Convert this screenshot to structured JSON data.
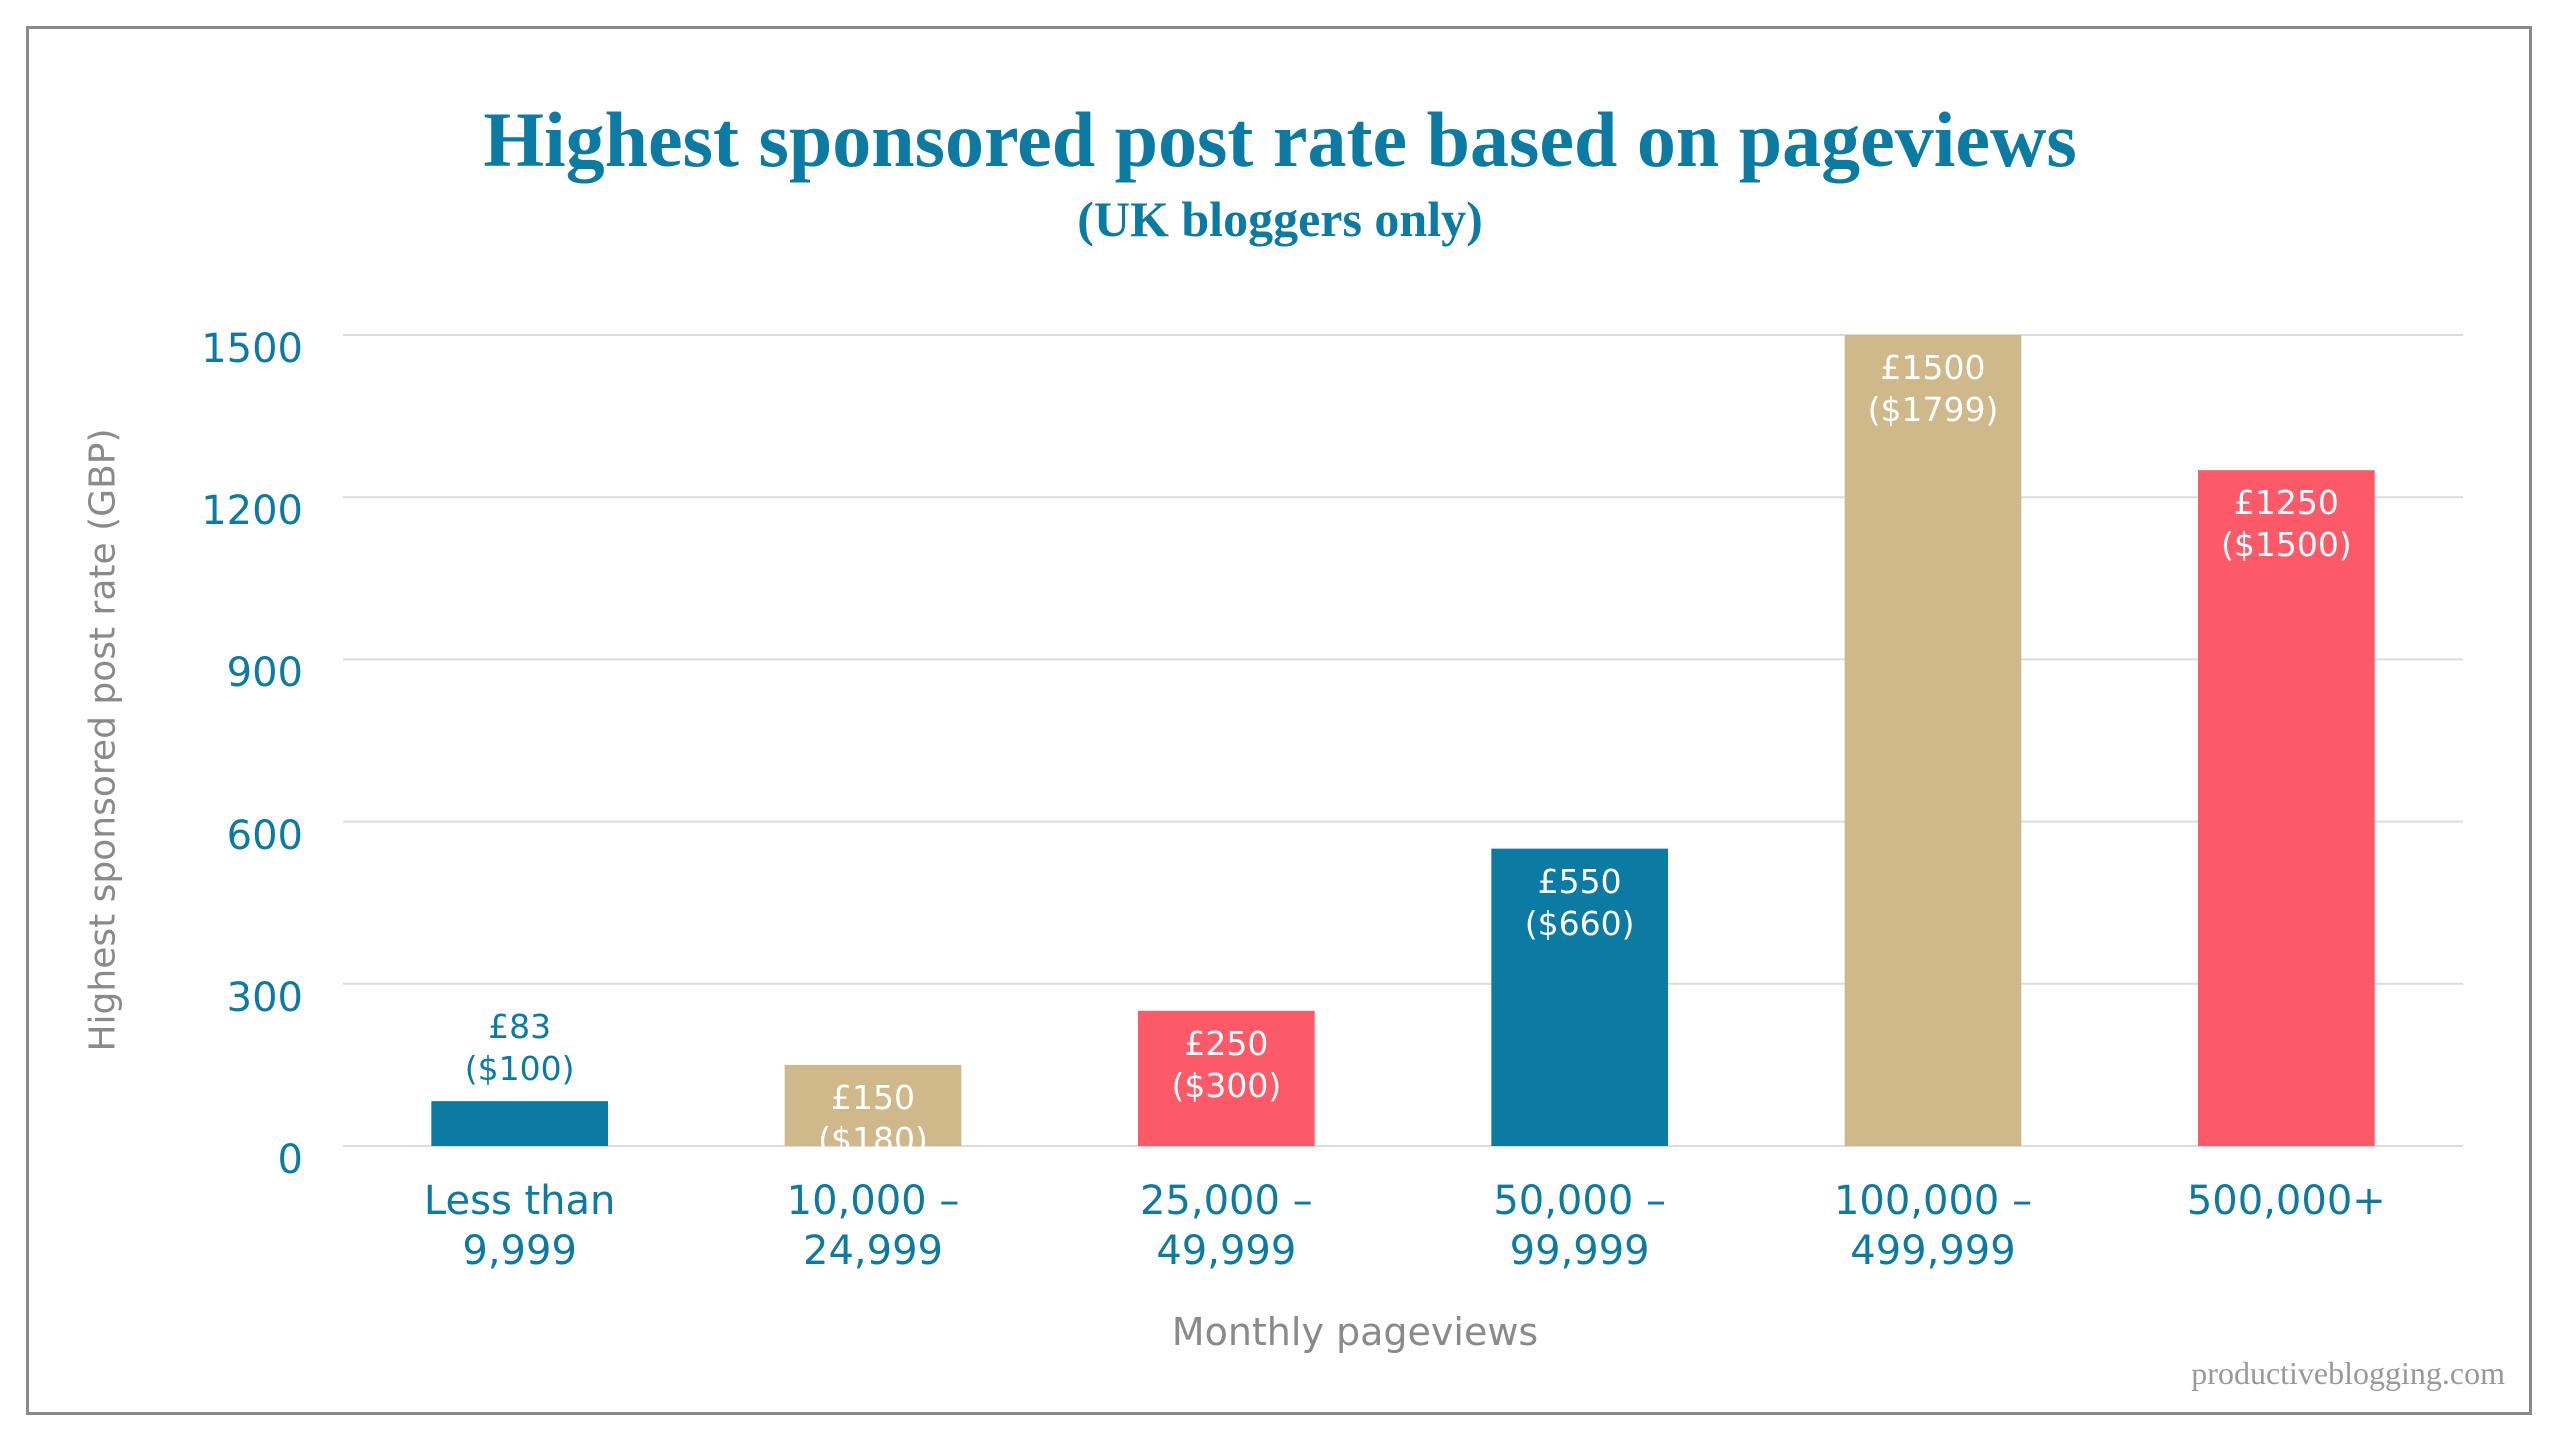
{
  "chart_data": {
    "type": "bar",
    "title": "Highest sponsored post rate based on pageviews",
    "subtitle": "(UK bloggers only)",
    "x_label": "Monthly pageviews",
    "y_label": "Highest sponsored post rate (GBP)",
    "source": "productiveblogging.com",
    "categories": [
      "Less than 9,999",
      "10,000 – 24,999",
      "25,000 – 49,999",
      "50,000 – 99,999",
      "100,000 – 499,999",
      "500,000+"
    ],
    "values": [
      83,
      150,
      250,
      550,
      1500,
      1250
    ],
    "value_labels": [
      "£83 ($100)",
      "£150 ($180)",
      "£250 ($300)",
      "£550 ($660)",
      "£1500 ($1799)",
      "£1250 ($1500)"
    ],
    "colors": [
      "#0b7ba3",
      "#cfb98b",
      "#fd5a69",
      "#0b7ba3",
      "#cfb98b",
      "#fd5a69"
    ],
    "ylim": [
      0,
      1500
    ],
    "yticks": [
      0,
      300,
      600,
      900,
      1200,
      1500
    ],
    "grid": true
  }
}
